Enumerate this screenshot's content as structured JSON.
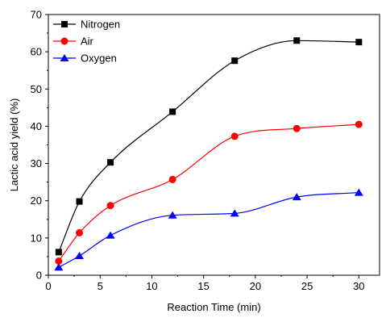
{
  "chart_data": {
    "type": "scatter",
    "title": "",
    "xlabel": "Reaction Time (min)",
    "ylabel": "Lactic acid yield (%)",
    "xlim": [
      0,
      32
    ],
    "ylim": [
      0,
      70
    ],
    "xticks": [
      0,
      5,
      10,
      15,
      20,
      25,
      30
    ],
    "yticks": [
      0,
      10,
      20,
      30,
      40,
      50,
      60,
      70
    ],
    "x": [
      1,
      3,
      6,
      12,
      18,
      24,
      30
    ],
    "legend_position": "top-left",
    "grid": false,
    "series": [
      {
        "name": "Nitrogen",
        "marker": "square",
        "color": "#000000",
        "values": [
          6.2,
          19.8,
          30.3,
          43.9,
          57.6,
          63.0,
          62.6
        ]
      },
      {
        "name": "Air",
        "marker": "circle",
        "color": "#ff0000",
        "values": [
          3.8,
          11.4,
          18.7,
          25.7,
          37.3,
          39.4,
          40.5
        ]
      },
      {
        "name": "Oxygen",
        "marker": "triangle",
        "color": "#0000ff",
        "values": [
          2.1,
          5.2,
          10.7,
          16.1,
          16.6,
          21.0,
          22.2
        ]
      }
    ]
  }
}
